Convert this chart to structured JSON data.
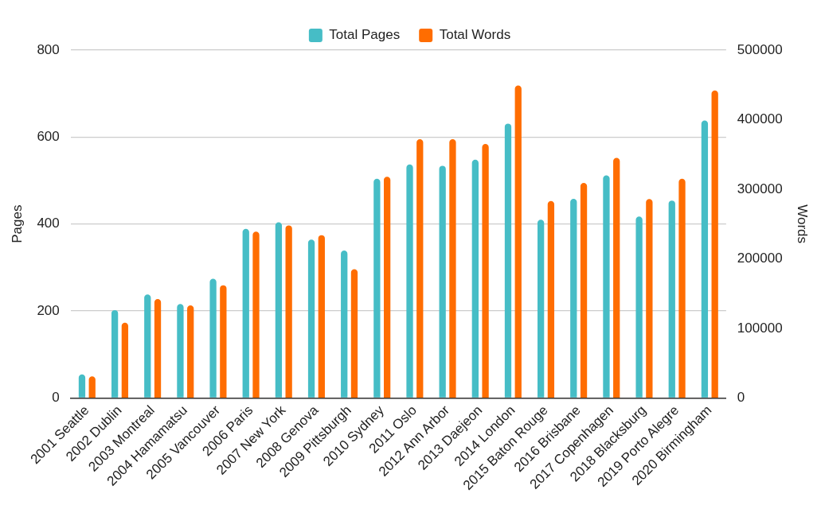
{
  "chart_data": {
    "type": "bar",
    "categories": [
      "2001 Seattle",
      "2002 Dublin",
      "2003 Montreal",
      "2004 Hamamatsu",
      "2005 Vancouver",
      "2006 Paris",
      "2007 New York",
      "2008 Genova",
      "2009 Pittsburgh",
      "2010 Sydney",
      "2011 Oslo",
      "2012 Ann Arbor",
      "2013 Daejeon",
      "2014 London",
      "2015 Baton Rouge",
      "2016 Brisbane",
      "2017 Copenhagen",
      "2018 Blacksburg",
      "2019 Porto Alegre",
      "2020 Birmingham"
    ],
    "series": [
      {
        "name": "Total Pages",
        "color": "#46bdc6",
        "values": [
          54,
          202,
          238,
          216,
          274,
          389,
          404,
          364,
          339,
          504,
          537,
          534,
          548,
          631,
          410,
          458,
          512,
          417,
          454,
          638
        ]
      },
      {
        "name": "Total Words",
        "color": "#ff6d01",
        "axis": "y2",
        "values": [
          31000,
          108000,
          142000,
          133000,
          162000,
          239000,
          248000,
          234000,
          185000,
          318000,
          372000,
          372000,
          365000,
          449000,
          283000,
          309000,
          345000,
          286000,
          315000,
          442000
        ]
      }
    ],
    "ylabel": "Pages",
    "y2label": "Words",
    "ylim": [
      0,
      800
    ],
    "yticks": [
      0,
      200,
      400,
      600,
      800
    ],
    "y2lim": [
      0,
      500000
    ],
    "y2ticks": [
      0,
      100000,
      200000,
      300000,
      400000,
      500000
    ],
    "grid": "y",
    "legend": "top"
  }
}
